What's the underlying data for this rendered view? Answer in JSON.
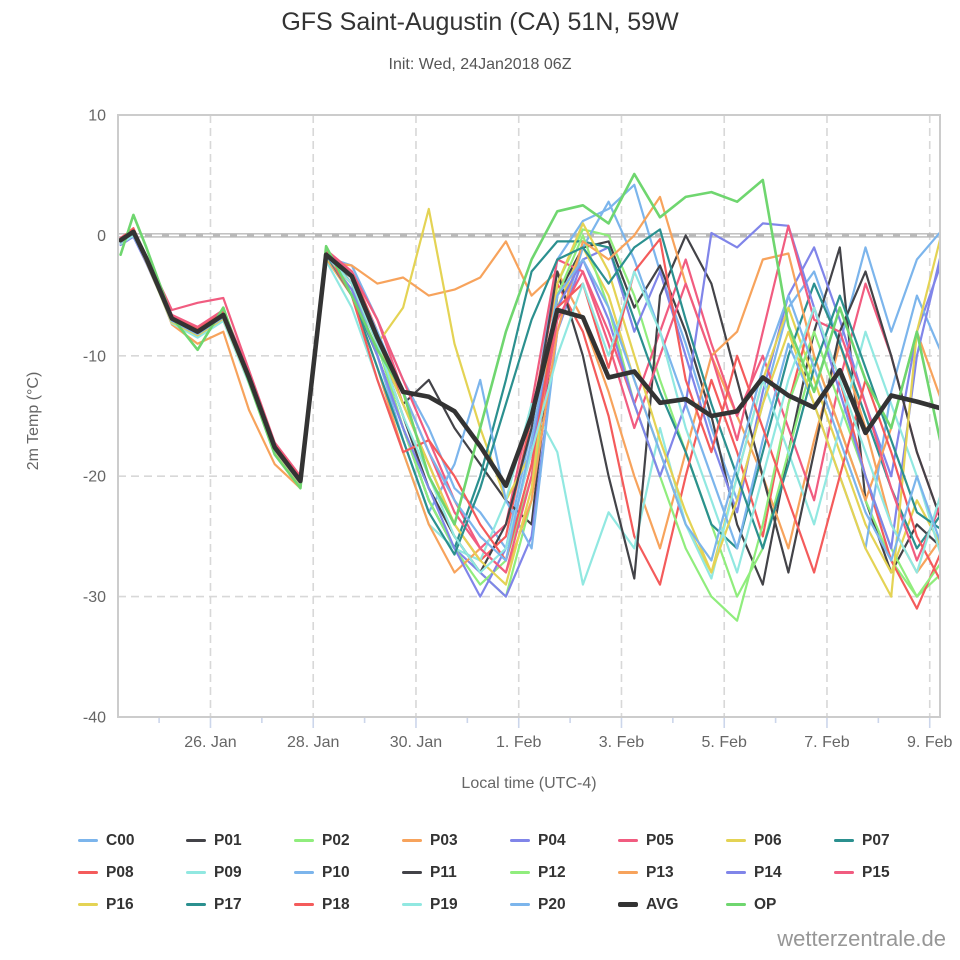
{
  "watermark": "wetterzentrale.de",
  "chart_data": {
    "type": "line",
    "title": "GFS Saint-Augustin (CA) 51N, 59W",
    "subtitle": "Init: Wed, 24Jan2018 06Z",
    "xlabel": "Local time (UTC-4)",
    "ylabel": "2m Temp (°C)",
    "ylim": [
      -40,
      10
    ],
    "xlim": [
      24.2,
      40.2
    ],
    "x_unit": "day number (Jan 24 = 24, Feb 1 = 32)",
    "grid": "dashed",
    "zero_line": 0,
    "legend_position": "bottom",
    "yticks": [
      10,
      0,
      -10,
      -20,
      -30,
      -40
    ],
    "xticks": {
      "values": [
        26,
        28,
        30,
        32,
        34,
        36,
        38,
        40
      ],
      "labels": [
        "26. Jan",
        "28. Jan",
        "30. Jan",
        "1. Feb",
        "3. Feb",
        "5. Feb",
        "7. Feb",
        "9. Feb"
      ]
    },
    "x": [
      24.25,
      24.5,
      24.75,
      25.25,
      25.75,
      26.25,
      26.75,
      27.25,
      27.75,
      28.25,
      28.75,
      29.25,
      29.75,
      30.25,
      30.75,
      31.25,
      31.75,
      32.25,
      32.75,
      33.25,
      33.75,
      34.25,
      34.75,
      35.25,
      35.75,
      36.25,
      36.75,
      37.25,
      37.75,
      38.25,
      38.75,
      39.25,
      39.75,
      40.25
    ],
    "series": [
      {
        "name": "C00",
        "color": "#7cb5ec",
        "width": 2.2,
        "values": [
          -0.5,
          0.2,
          -2.0,
          -7.0,
          -8.2,
          -6.8,
          -12.0,
          -17.8,
          -20.6,
          -1.8,
          -2.5,
          -7,
          -12,
          -16,
          -21,
          -23,
          -26,
          -16,
          -2,
          1.2,
          2.2,
          4.2,
          -3,
          -9,
          -16,
          -22,
          -14,
          -6,
          -3,
          -9,
          -1,
          -8,
          -2,
          0.5
        ]
      },
      {
        "name": "P01",
        "color": "#434348",
        "width": 2.2,
        "values": [
          -0.3,
          0.4,
          -1.8,
          -6.8,
          -7.8,
          -6.4,
          -11.6,
          -17.4,
          -20.2,
          -1.4,
          -4,
          -9,
          -14,
          -12,
          -16,
          -19,
          -22,
          -24,
          -5,
          -1,
          -0.5,
          -6,
          -2.5,
          -8,
          -15,
          -24,
          -29,
          -18,
          -8,
          -1,
          -22,
          -28,
          -24,
          -26
        ]
      },
      {
        "name": "P02",
        "color": "#90ed7d",
        "width": 2.2,
        "values": [
          -0.6,
          0.1,
          -2.2,
          -7.2,
          -8.4,
          -7.0,
          -12.2,
          -18.0,
          -20.8,
          -2.0,
          -3.5,
          -9,
          -16,
          -21,
          -25,
          -28,
          -30,
          -22,
          -4,
          0.5,
          0,
          -5,
          -12,
          -18,
          -24,
          -30,
          -26,
          -18,
          -10,
          -16,
          -22,
          -27,
          -30,
          -28
        ]
      },
      {
        "name": "P03",
        "color": "#f7a35c",
        "width": 2.2,
        "values": [
          -0.4,
          0.3,
          -1.9,
          -7.4,
          -9.0,
          -8.0,
          -14.5,
          -19.0,
          -21.0,
          -2.2,
          -2.5,
          -4,
          -3.5,
          -5,
          -4.5,
          -3.5,
          -0.5,
          -5,
          -3,
          -7,
          -13,
          -20,
          -26,
          -18,
          -10,
          -15,
          -20,
          -26,
          -17,
          -9,
          -16,
          -24,
          -28,
          -25
        ]
      },
      {
        "name": "P04",
        "color": "#8085e9",
        "width": 2.2,
        "values": [
          -0.8,
          -0.1,
          -2.3,
          -7.1,
          -8.3,
          -6.9,
          -12.1,
          -17.9,
          -20.7,
          -1.9,
          -4,
          -10,
          -16,
          -22,
          -26,
          -28,
          -30,
          -25,
          -8,
          -2,
          -1,
          -8,
          -3,
          -10,
          -17,
          -23,
          -13,
          -5,
          -1,
          -7,
          -14,
          -20,
          -8,
          -2
        ]
      },
      {
        "name": "P05",
        "color": "#f15c80",
        "width": 2.2,
        "values": [
          -0.2,
          0.5,
          -1.7,
          -6.2,
          -5.6,
          -5.2,
          -11.2,
          -17.2,
          -20.0,
          -1.2,
          -3,
          -7,
          -12,
          -17,
          -22,
          -26,
          -24,
          -14,
          -2,
          -3,
          -8,
          -14,
          -8,
          -2,
          -9,
          -15,
          -10,
          -16,
          -22,
          -12,
          -4,
          -10,
          -18,
          -24
        ]
      },
      {
        "name": "P06",
        "color": "#e4d354",
        "width": 2.2,
        "values": [
          -0.4,
          0.3,
          -1.9,
          -6.9,
          -8.0,
          -6.6,
          -11.8,
          -17.6,
          -20.4,
          -1.6,
          -4,
          -9,
          -6,
          2.2,
          -9,
          -16,
          -22,
          -18,
          -6,
          -1,
          -5,
          -12,
          -18,
          -24,
          -28,
          -20,
          -12,
          -6,
          -12,
          -18,
          -24,
          -28,
          -22,
          -26
        ]
      },
      {
        "name": "P07",
        "color": "#2b908f",
        "width": 2.2,
        "values": [
          -0.5,
          0.2,
          -2.0,
          -7.0,
          -8.1,
          -6.7,
          -11.9,
          -17.7,
          -20.5,
          -1.7,
          -5,
          -10,
          -16,
          -22,
          -26,
          -20,
          -12,
          -3,
          -0.5,
          -0.5,
          -1,
          -7,
          -13,
          -18,
          -24,
          -26,
          -18,
          -10,
          -4,
          -9,
          -15,
          -21,
          -26,
          -23
        ]
      },
      {
        "name": "P08",
        "color": "#f45b5b",
        "width": 2.2,
        "values": [
          -0.3,
          0.6,
          -1.8,
          -6.7,
          -7.9,
          -6.5,
          -11.7,
          -17.5,
          -20.3,
          -1.5,
          -3,
          -8,
          -14,
          -19,
          -24,
          -27,
          -25,
          -15,
          -4,
          -8,
          -15,
          -25,
          -29,
          -20,
          -12,
          -18,
          -25,
          -14,
          -6,
          -12,
          -20,
          -27,
          -31,
          -26
        ]
      },
      {
        "name": "P09",
        "color": "#91e8e1",
        "width": 2.2,
        "values": [
          -0.7,
          0.0,
          -2.1,
          -7.3,
          -8.5,
          -7.1,
          -12.3,
          -18.1,
          -20.9,
          -2.1,
          -6,
          -12,
          -18,
          -24,
          -26,
          -27,
          -22,
          -14,
          -18,
          -29,
          -23,
          -26,
          -16,
          -24,
          -28.5,
          -20,
          -12,
          -18,
          -24,
          -16,
          -8,
          -14,
          -20,
          -27
        ]
      },
      {
        "name": "P10",
        "color": "#7cb5ec",
        "width": 2.2,
        "values": [
          -0.4,
          0.3,
          -1.9,
          -6.9,
          -8.0,
          -6.6,
          -11.8,
          -17.6,
          -20.4,
          -1.6,
          -4,
          -10,
          -17,
          -23,
          -19,
          -12,
          -22,
          -26,
          -8,
          -1,
          2.8,
          -2,
          -8,
          -14,
          -20,
          -26,
          -17,
          -9,
          -14,
          -20,
          -26,
          -13,
          -5,
          -10
        ]
      },
      {
        "name": "P11",
        "color": "#434348",
        "width": 2.2,
        "values": [
          -0.5,
          0.4,
          -2.0,
          -7.0,
          -8.2,
          -6.8,
          -12.0,
          -17.8,
          -20.6,
          -1.8,
          -4,
          -9,
          -15,
          -21,
          -25,
          -28,
          -24,
          -16,
          -3,
          -10,
          -20,
          -28.5,
          -5,
          0,
          -4,
          -12,
          -20,
          -28,
          -18,
          -8,
          -3,
          -10,
          -18,
          -24
        ]
      },
      {
        "name": "P12",
        "color": "#90ed7d",
        "width": 2.2,
        "values": [
          -0.3,
          0.2,
          -1.8,
          -6.8,
          -7.9,
          -6.5,
          -11.7,
          -17.5,
          -20.3,
          -1.5,
          -3.5,
          -9,
          -16,
          -22,
          -26,
          -29,
          -27,
          -20,
          -5,
          0,
          -6,
          -14,
          -20,
          -26,
          -30,
          -32,
          -24,
          -14,
          -8,
          -14,
          -20,
          -26,
          -30,
          -27
        ]
      },
      {
        "name": "P13",
        "color": "#f7a35c",
        "width": 2.2,
        "values": [
          -0.6,
          0.3,
          -2.1,
          -7.1,
          -8.3,
          -6.9,
          -12.1,
          -17.9,
          -20.7,
          -1.9,
          -5,
          -11,
          -18,
          -24,
          -28,
          -26,
          -28,
          -22,
          -8,
          -0.5,
          -2,
          0,
          3.2,
          -4,
          -10,
          -8,
          -2,
          -1.5,
          -10,
          -16,
          -22,
          -16,
          -8,
          -14
        ]
      },
      {
        "name": "P14",
        "color": "#8085e9",
        "width": 2.2,
        "values": [
          -0.4,
          0.1,
          -1.9,
          -6.9,
          -8.1,
          -6.7,
          -11.9,
          -17.7,
          -20.5,
          -1.7,
          -4.5,
          -10,
          -16,
          -21,
          -26,
          -30,
          -26,
          -18,
          -6,
          -2,
          -7,
          -14,
          -20,
          -14,
          0.2,
          -1,
          1,
          0.8,
          -6,
          -13,
          -20,
          -26,
          -10,
          -1
        ]
      },
      {
        "name": "P15",
        "color": "#f15c80",
        "width": 2.2,
        "values": [
          -0.5,
          0.5,
          -2.0,
          -6.6,
          -7.6,
          -6.2,
          -11.4,
          -17.3,
          -20.1,
          -1.3,
          -3,
          -7,
          -13,
          -18,
          -23,
          -26,
          -28,
          -20,
          -7,
          -3,
          -9,
          -16,
          -10,
          -4,
          -10,
          -17,
          -8,
          0.8,
          -7,
          -8,
          -14,
          -21,
          -27,
          -22
        ]
      },
      {
        "name": "P16",
        "color": "#e4d354",
        "width": 2.2,
        "values": [
          -0.6,
          0.2,
          -2.2,
          -7.2,
          -8.3,
          -6.9,
          -12.1,
          -17.9,
          -20.7,
          -1.9,
          -4,
          -9,
          -14,
          -19,
          -24,
          -27,
          -29,
          -21,
          -4,
          1,
          -3,
          -10,
          -17,
          -23,
          -28,
          -22,
          -14,
          -8,
          -14,
          -20,
          -26,
          -30,
          -8,
          0.5
        ]
      },
      {
        "name": "P17",
        "color": "#2b908f",
        "width": 2.2,
        "values": [
          -0.4,
          0.3,
          -1.9,
          -6.9,
          -8.0,
          -6.6,
          -11.8,
          -17.6,
          -20.4,
          -1.6,
          -5,
          -11,
          -17,
          -23,
          -26.5,
          -21,
          -14,
          -7,
          -2,
          -1,
          -4,
          -1,
          0.5,
          -7,
          -14,
          -20,
          -26,
          -19,
          -11,
          -5,
          -11,
          -17,
          -23,
          -24.5
        ]
      },
      {
        "name": "P18",
        "color": "#f45b5b",
        "width": 2.2,
        "values": [
          -0.3,
          0.5,
          -1.8,
          -6.8,
          -7.8,
          -6.4,
          -11.6,
          -17.4,
          -20.2,
          -1.4,
          -5,
          -12,
          -18,
          -17,
          -20,
          -24,
          -27,
          -19,
          -6,
          -4,
          -11,
          -3,
          -0.3,
          -12,
          -18,
          -10,
          -16,
          -22,
          -28,
          -20,
          -12,
          -18,
          -25,
          -29
        ]
      },
      {
        "name": "P19",
        "color": "#91e8e1",
        "width": 2.2,
        "values": [
          -0.5,
          0.1,
          -2.0,
          -7.0,
          -8.1,
          -6.7,
          -11.9,
          -17.7,
          -20.5,
          -1.7,
          -4,
          -9,
          -15,
          -20,
          -25,
          -28,
          -26,
          -18,
          -10,
          -4,
          -10,
          -3,
          -8,
          -16,
          -22,
          -28,
          -20,
          -12,
          -6,
          -12,
          -18,
          -24,
          -28,
          -21
        ]
      },
      {
        "name": "P20",
        "color": "#7cb5ec",
        "width": 2.2,
        "values": [
          -0.6,
          0.2,
          -2.1,
          -7.1,
          -8.2,
          -6.8,
          -12.0,
          -17.8,
          -20.6,
          -1.8,
          -3.5,
          -8,
          -13,
          -18,
          -22,
          -25,
          -27,
          -17,
          -5,
          -2,
          -6,
          -12,
          -18,
          -24,
          -27,
          -19,
          -11,
          -5,
          -11,
          -17,
          -23,
          -27,
          -20,
          -26
        ]
      },
      {
        "name": "AVG",
        "color": "#333333",
        "width": 4.6,
        "values": [
          -0.4,
          0.3,
          -1.9,
          -6.9,
          -8.0,
          -6.6,
          -11.8,
          -17.6,
          -20.4,
          -1.6,
          -3.4,
          -8.5,
          -13.0,
          -13.4,
          -14.6,
          -17.5,
          -20.8,
          -15.0,
          -6.2,
          -6.8,
          -11.8,
          -11.3,
          -13.9,
          -13.6,
          -15.0,
          -14.6,
          -11.8,
          -13.3,
          -14.3,
          -11.2,
          -16.4,
          -13.3,
          -13.8,
          -14.4
        ]
      },
      {
        "name": "OP",
        "color": "#6fd66f",
        "width": 2.6,
        "values": [
          -1.6,
          1.7,
          -1.0,
          -6.8,
          -9.5,
          -6.0,
          -12.2,
          -18.2,
          -21.0,
          -0.9,
          -5,
          -9.5,
          -13,
          -20,
          -24,
          -16,
          -8,
          -2,
          2,
          2.5,
          1,
          5.1,
          1.5,
          3.2,
          3.6,
          2.8,
          4.6,
          -7.5,
          -13,
          -6,
          -12,
          -16,
          -8,
          -18
        ]
      }
    ]
  },
  "style": {
    "grid_color": "#d8d8d8",
    "zero_line_color": "#b9b9b9",
    "tick_color": "#ccd6eb",
    "axis_text_color": "#666666",
    "border_color": "#cccccc"
  }
}
